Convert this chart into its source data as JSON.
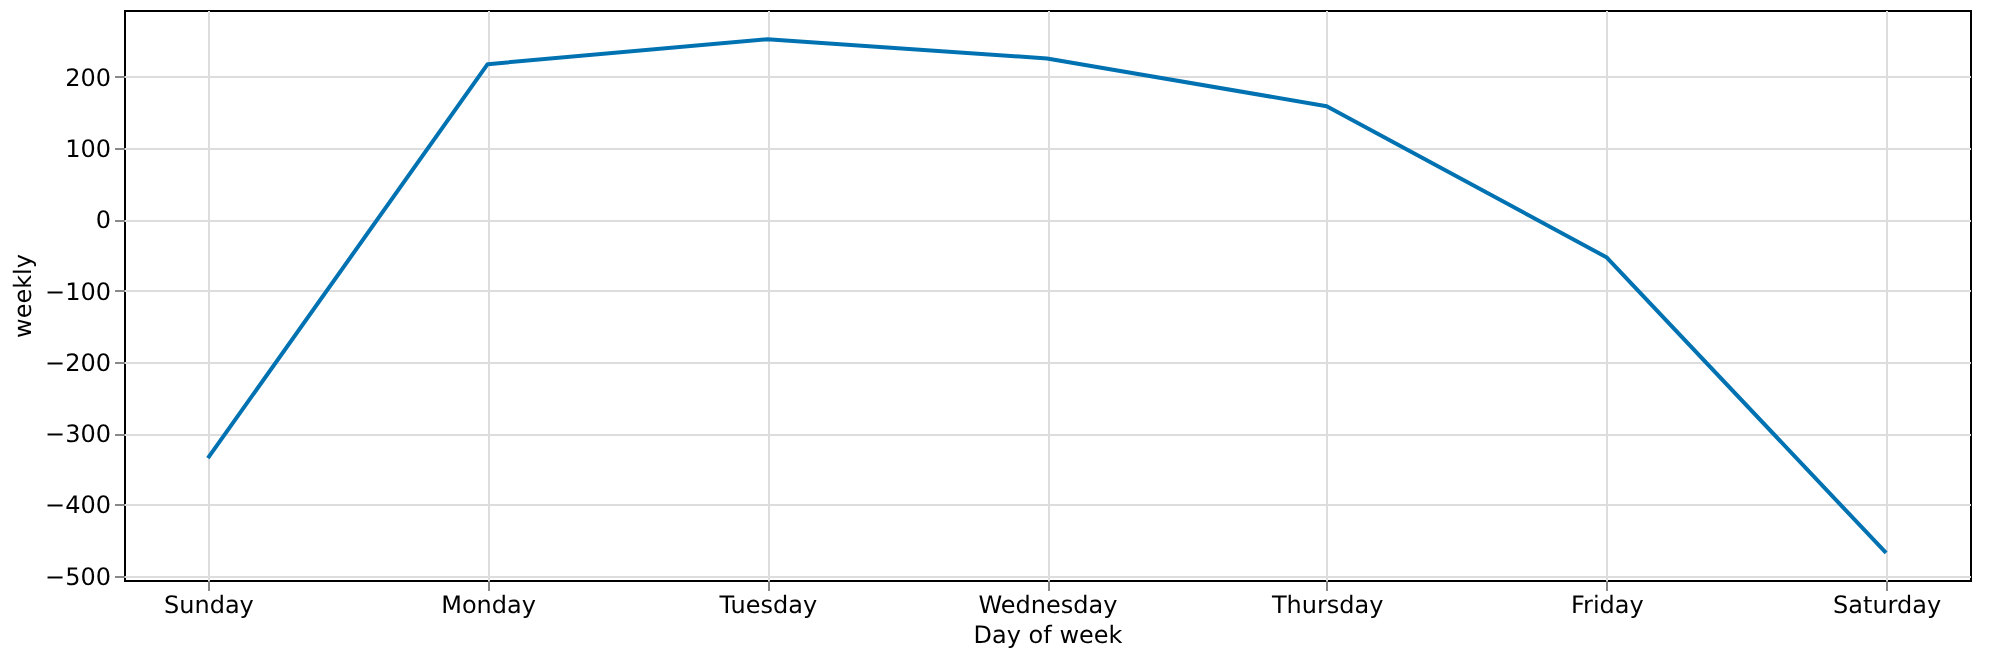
{
  "chart_data": {
    "type": "line",
    "xlabel": "Day of week",
    "ylabel": "weekly",
    "categories": [
      "Sunday",
      "Monday",
      "Tuesday",
      "Wednesday",
      "Thursday",
      "Friday",
      "Saturday"
    ],
    "series": [
      {
        "color": "#0072b2",
        "values": [
          -335,
          218,
          253,
          226,
          159,
          -53,
          -468
        ]
      }
    ],
    "ylim": [
      -506,
      294
    ],
    "yticks": [
      -500,
      -400,
      -300,
      -200,
      -100,
      0,
      100,
      200
    ],
    "grid": true,
    "marker": "none",
    "line_style": "solid"
  }
}
